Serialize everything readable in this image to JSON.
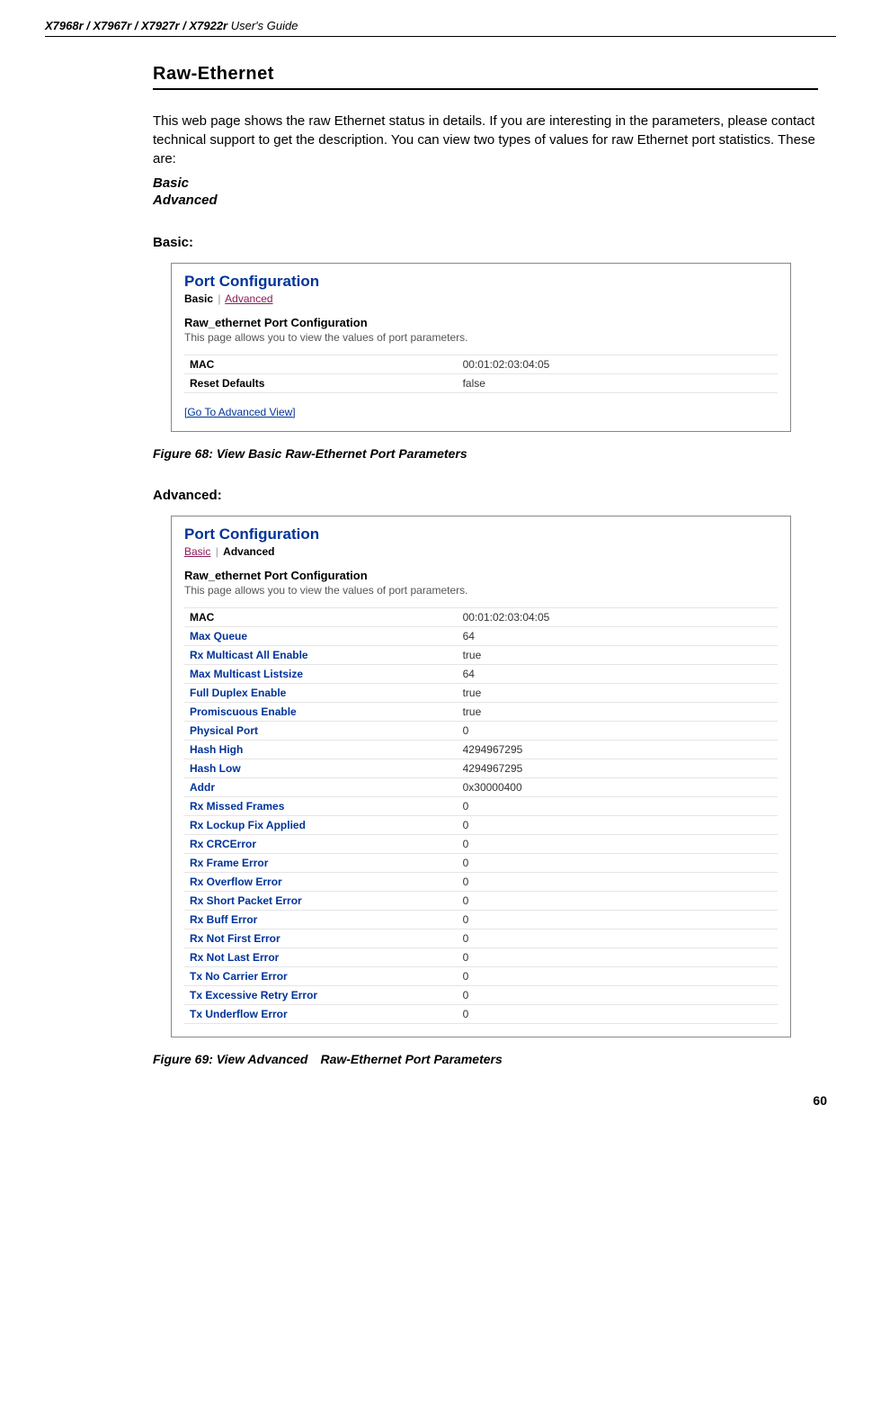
{
  "header": {
    "models": "X7968r / X7967r / X7927r / X7922r",
    "guide": " User's Guide"
  },
  "section_title": "Raw-Ethernet",
  "intro": "This web page shows the raw Ethernet status in details. If you are interesting in the parameters, please contact technical support to get the description. You can view two types of values for raw Ethernet port statistics. These are:",
  "types": [
    "Basic",
    "Advanced"
  ],
  "basic": {
    "heading": "Basic:",
    "panel_title": "Port Configuration",
    "tab_active": "Basic",
    "tab_link": "Advanced",
    "raw_title": "Raw_ethernet Port Configuration",
    "raw_sub": "This page allows you to view the values of port parameters.",
    "rows": [
      {
        "name": "MAC",
        "value": "00:01:02:03:04:05",
        "black": true
      },
      {
        "name": "Reset Defaults",
        "value": "false",
        "black": true
      }
    ],
    "goto": "[Go To Advanced View]",
    "caption": "Figure 68: View Basic Raw-Ethernet Port Parameters"
  },
  "advanced": {
    "heading": "Advanced:",
    "panel_title": "Port Configuration",
    "tab_link": "Basic",
    "tab_active": "Advanced",
    "raw_title": "Raw_ethernet Port Configuration",
    "raw_sub": "This page allows you to view the values of port parameters.",
    "rows": [
      {
        "name": "MAC",
        "value": "00:01:02:03:04:05",
        "black": true
      },
      {
        "name": "Max Queue",
        "value": "64"
      },
      {
        "name": "Rx Multicast All Enable",
        "value": "true"
      },
      {
        "name": "Max Multicast Listsize",
        "value": "64"
      },
      {
        "name": "Full Duplex Enable",
        "value": "true"
      },
      {
        "name": "Promiscuous Enable",
        "value": "true"
      },
      {
        "name": "Physical Port",
        "value": "0"
      },
      {
        "name": "Hash High",
        "value": "4294967295"
      },
      {
        "name": "Hash Low",
        "value": "4294967295"
      },
      {
        "name": "Addr",
        "value": "0x30000400"
      },
      {
        "name": "Rx Missed Frames",
        "value": "0"
      },
      {
        "name": "Rx Lockup Fix Applied",
        "value": "0"
      },
      {
        "name": "Rx CRCError",
        "value": "0"
      },
      {
        "name": "Rx Frame Error",
        "value": "0"
      },
      {
        "name": "Rx Overflow Error",
        "value": "0"
      },
      {
        "name": "Rx Short Packet Error",
        "value": "0"
      },
      {
        "name": "Rx Buff Error",
        "value": "0"
      },
      {
        "name": "Rx Not First Error",
        "value": "0"
      },
      {
        "name": "Rx Not Last Error",
        "value": "0"
      },
      {
        "name": "Tx No Carrier Error",
        "value": "0"
      },
      {
        "name": "Tx Excessive Retry Error",
        "value": "0"
      },
      {
        "name": "Tx Underflow Error",
        "value": "0"
      }
    ],
    "caption": "Figure 69: View Advanced Raw-Ethernet Port Parameters"
  },
  "page_number": "60",
  "colors": {
    "link_blue": "#003399",
    "visited_purple": "#8a1a5a",
    "border_gray": "#e5e5e5",
    "text_gray": "#555555"
  }
}
